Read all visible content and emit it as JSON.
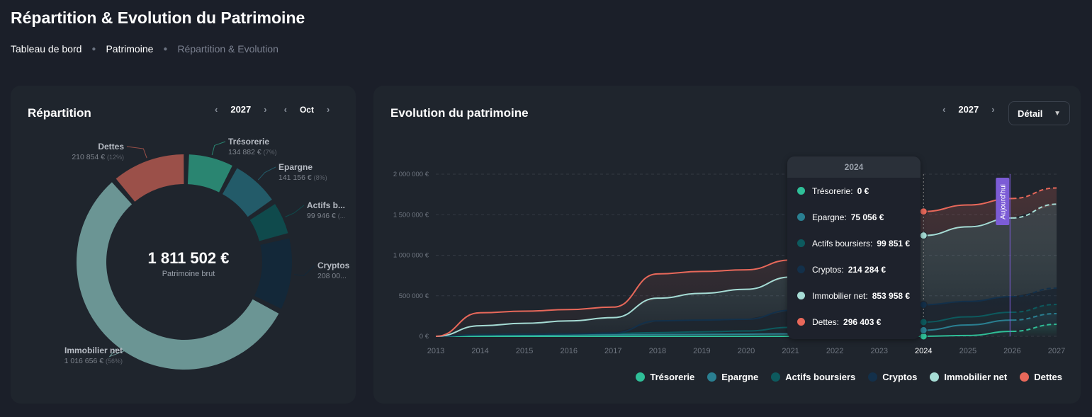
{
  "page": {
    "title": "Répartition & Evolution du Patrimoine",
    "breadcrumb": [
      "Tableau de bord",
      "Patrimoine",
      "Répartition & Evolution"
    ]
  },
  "repartition": {
    "title": "Répartition",
    "year": "2027",
    "month": "Oct",
    "total": "1 811 502 €",
    "total_label": "Patrimoine brut"
  },
  "evolution": {
    "title": "Evolution du patrimoine",
    "year": "2027",
    "view": "Détail",
    "today_label": "Aujourd'hui"
  },
  "chart_data": [
    {
      "type": "pie",
      "variant": "donut",
      "center_value": "1 811 502 €",
      "center_label": "Patrimoine brut",
      "slices": [
        {
          "label": "Trésorerie",
          "value": 134882,
          "text": "134 882 €",
          "pct": "(7%)",
          "color": "#2a8571"
        },
        {
          "label": "Epargne",
          "value": 141156,
          "text": "141 156 €",
          "pct": "(8%)",
          "color": "#235b69"
        },
        {
          "label": "Actifs b...",
          "value": 99946,
          "text": "99 946 €",
          "pct": "(...",
          "color": "#0f4a4c"
        },
        {
          "label": "Cryptos",
          "value": 208008,
          "text": "208 00...",
          "pct": "",
          "color": "#132839"
        },
        {
          "label": "Immobilier net",
          "value": 1016656,
          "text": "1 016 656 €",
          "pct": "(56%)",
          "color": "#6b9594"
        },
        {
          "label": "Dettes",
          "value": 210854,
          "text": "210 854 €",
          "pct": "(12%)",
          "color": "#9b5049"
        }
      ]
    },
    {
      "type": "area",
      "stacked": true,
      "x": [
        2013,
        2014,
        2015,
        2016,
        2017,
        2018,
        2019,
        2020,
        2021,
        2022,
        2023,
        2024,
        2025,
        2026,
        2027
      ],
      "ylim": [
        0,
        2000000
      ],
      "yticks": [
        "0 €",
        "500 000 €",
        "1 000 000 €",
        "1 500 000 €",
        "2 000 000 €"
      ],
      "grid": true,
      "legend": "bottom-right",
      "projection_from": 2026,
      "today": 2025.95,
      "series": [
        {
          "name": "Trésorerie",
          "color": "#2fbf98",
          "values": [
            0,
            0,
            0,
            0,
            0,
            0,
            0,
            0,
            0,
            0,
            0,
            0,
            10000,
            61000,
            148000
          ]
        },
        {
          "name": "Epargne",
          "color": "#2a7f91",
          "values": [
            0,
            15000,
            17000,
            19000,
            20000,
            22000,
            24000,
            26000,
            30000,
            45000,
            60000,
            75056,
            130000,
            139000,
            132000
          ]
        },
        {
          "name": "Actifs boursiers",
          "color": "#0d5a5e",
          "values": [
            0,
            5000,
            8000,
            11000,
            15000,
            23000,
            31000,
            39000,
            80000,
            85000,
            90000,
            99851,
            100000,
            97000,
            113000
          ]
        },
        {
          "name": "Cryptos",
          "color": "#13304a",
          "values": [
            0,
            0,
            0,
            0,
            5000,
            145000,
            145000,
            145000,
            210000,
            210000,
            210000,
            214284,
            190000,
            192000,
            201000
          ]
        },
        {
          "name": "Immobilier net",
          "color": "#a6dcd5",
          "values": [
            0,
            110000,
            135000,
            160000,
            190000,
            280000,
            330000,
            370000,
            410000,
            610000,
            740000,
            853958,
            920000,
            971000,
            1036000
          ]
        },
        {
          "name": "Dettes",
          "color": "#e8685a",
          "values": [
            0,
            160000,
            150000,
            140000,
            130000,
            300000,
            270000,
            240000,
            210000,
            200000,
            250000,
            296403,
            270000,
            240000,
            200000
          ]
        }
      ],
      "tooltip": {
        "x": "2024",
        "rows": [
          {
            "label": "Trésorerie:",
            "value": "0 €"
          },
          {
            "label": "Epargne:",
            "value": "75 056 €"
          },
          {
            "label": "Actifs boursiers:",
            "value": "99 851 €"
          },
          {
            "label": "Cryptos:",
            "value": "214 284 €"
          },
          {
            "label": "Immobilier net:",
            "value": "853 958 €"
          },
          {
            "label": "Dettes:",
            "value": "296 403 €"
          }
        ]
      }
    }
  ]
}
